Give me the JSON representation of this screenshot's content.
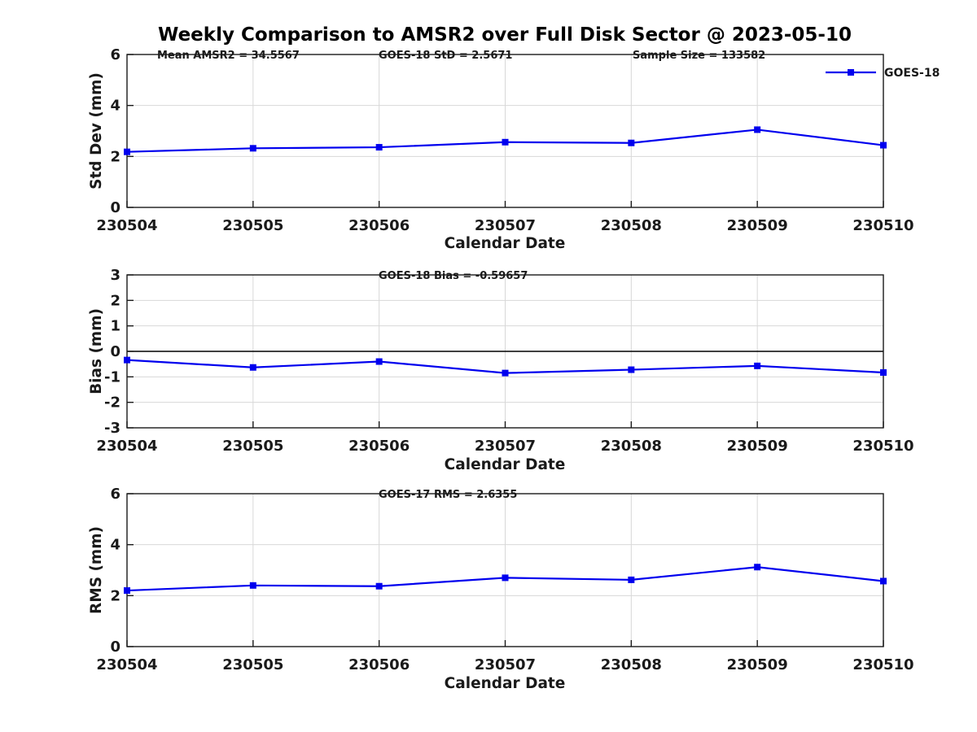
{
  "figure": {
    "title": "Weekly Comparison to AMSR2 over Full Disk Sector @ 2023-05-10"
  },
  "legend": {
    "series_label": "GOES-18",
    "position": "top-right"
  },
  "colors": {
    "series": "#0000EE",
    "grid": "#D8D8D8",
    "axis": "#1A1A1A",
    "zero_line": "#000000",
    "text": "#1A1A1A",
    "background": "#FFFFFF"
  },
  "chart_data": [
    {
      "name": "std-dev-panel",
      "type": "line",
      "annotations": [
        {
          "text": "Mean AMSR2 = 34.5567"
        },
        {
          "text": "GOES-18 StD = 2.5671"
        },
        {
          "text": "Sample Size = 133582"
        }
      ],
      "xlabel": "Calendar Date",
      "ylabel": "Std Dev (mm)",
      "categories": [
        "230504",
        "230505",
        "230506",
        "230507",
        "230508",
        "230509",
        "230510"
      ],
      "series": [
        {
          "name": "GOES-18",
          "values": [
            2.18,
            2.32,
            2.36,
            2.56,
            2.53,
            3.05,
            2.44
          ]
        }
      ],
      "ylim": [
        0,
        6
      ],
      "yticks": [
        0,
        2,
        4,
        6
      ],
      "grid": true,
      "zero_line": false,
      "marker": "square"
    },
    {
      "name": "bias-panel",
      "type": "line",
      "annotations": [
        {
          "text": "GOES-18 Bias  = -0.59657"
        }
      ],
      "xlabel": "Calendar Date",
      "ylabel": "Bias (mm)",
      "categories": [
        "230504",
        "230505",
        "230506",
        "230507",
        "230508",
        "230509",
        "230510"
      ],
      "series": [
        {
          "name": "GOES-18",
          "values": [
            -0.34,
            -0.63,
            -0.4,
            -0.85,
            -0.72,
            -0.57,
            -0.83
          ]
        }
      ],
      "ylim": [
        -3,
        3
      ],
      "yticks": [
        -3,
        -2,
        -1,
        0,
        1,
        2,
        3
      ],
      "grid": true,
      "zero_line": true,
      "marker": "square"
    },
    {
      "name": "rms-panel",
      "type": "line",
      "annotations": [
        {
          "text": "GOES-17 RMS = 2.6355"
        }
      ],
      "xlabel": "Calendar Date",
      "ylabel": "RMS (mm)",
      "categories": [
        "230504",
        "230505",
        "230506",
        "230507",
        "230508",
        "230509",
        "230510"
      ],
      "series": [
        {
          "name": "GOES-18",
          "values": [
            2.2,
            2.4,
            2.37,
            2.7,
            2.62,
            3.12,
            2.57
          ]
        }
      ],
      "ylim": [
        0,
        6
      ],
      "yticks": [
        0,
        2,
        4,
        6
      ],
      "grid": true,
      "zero_line": false,
      "marker": "square"
    }
  ]
}
